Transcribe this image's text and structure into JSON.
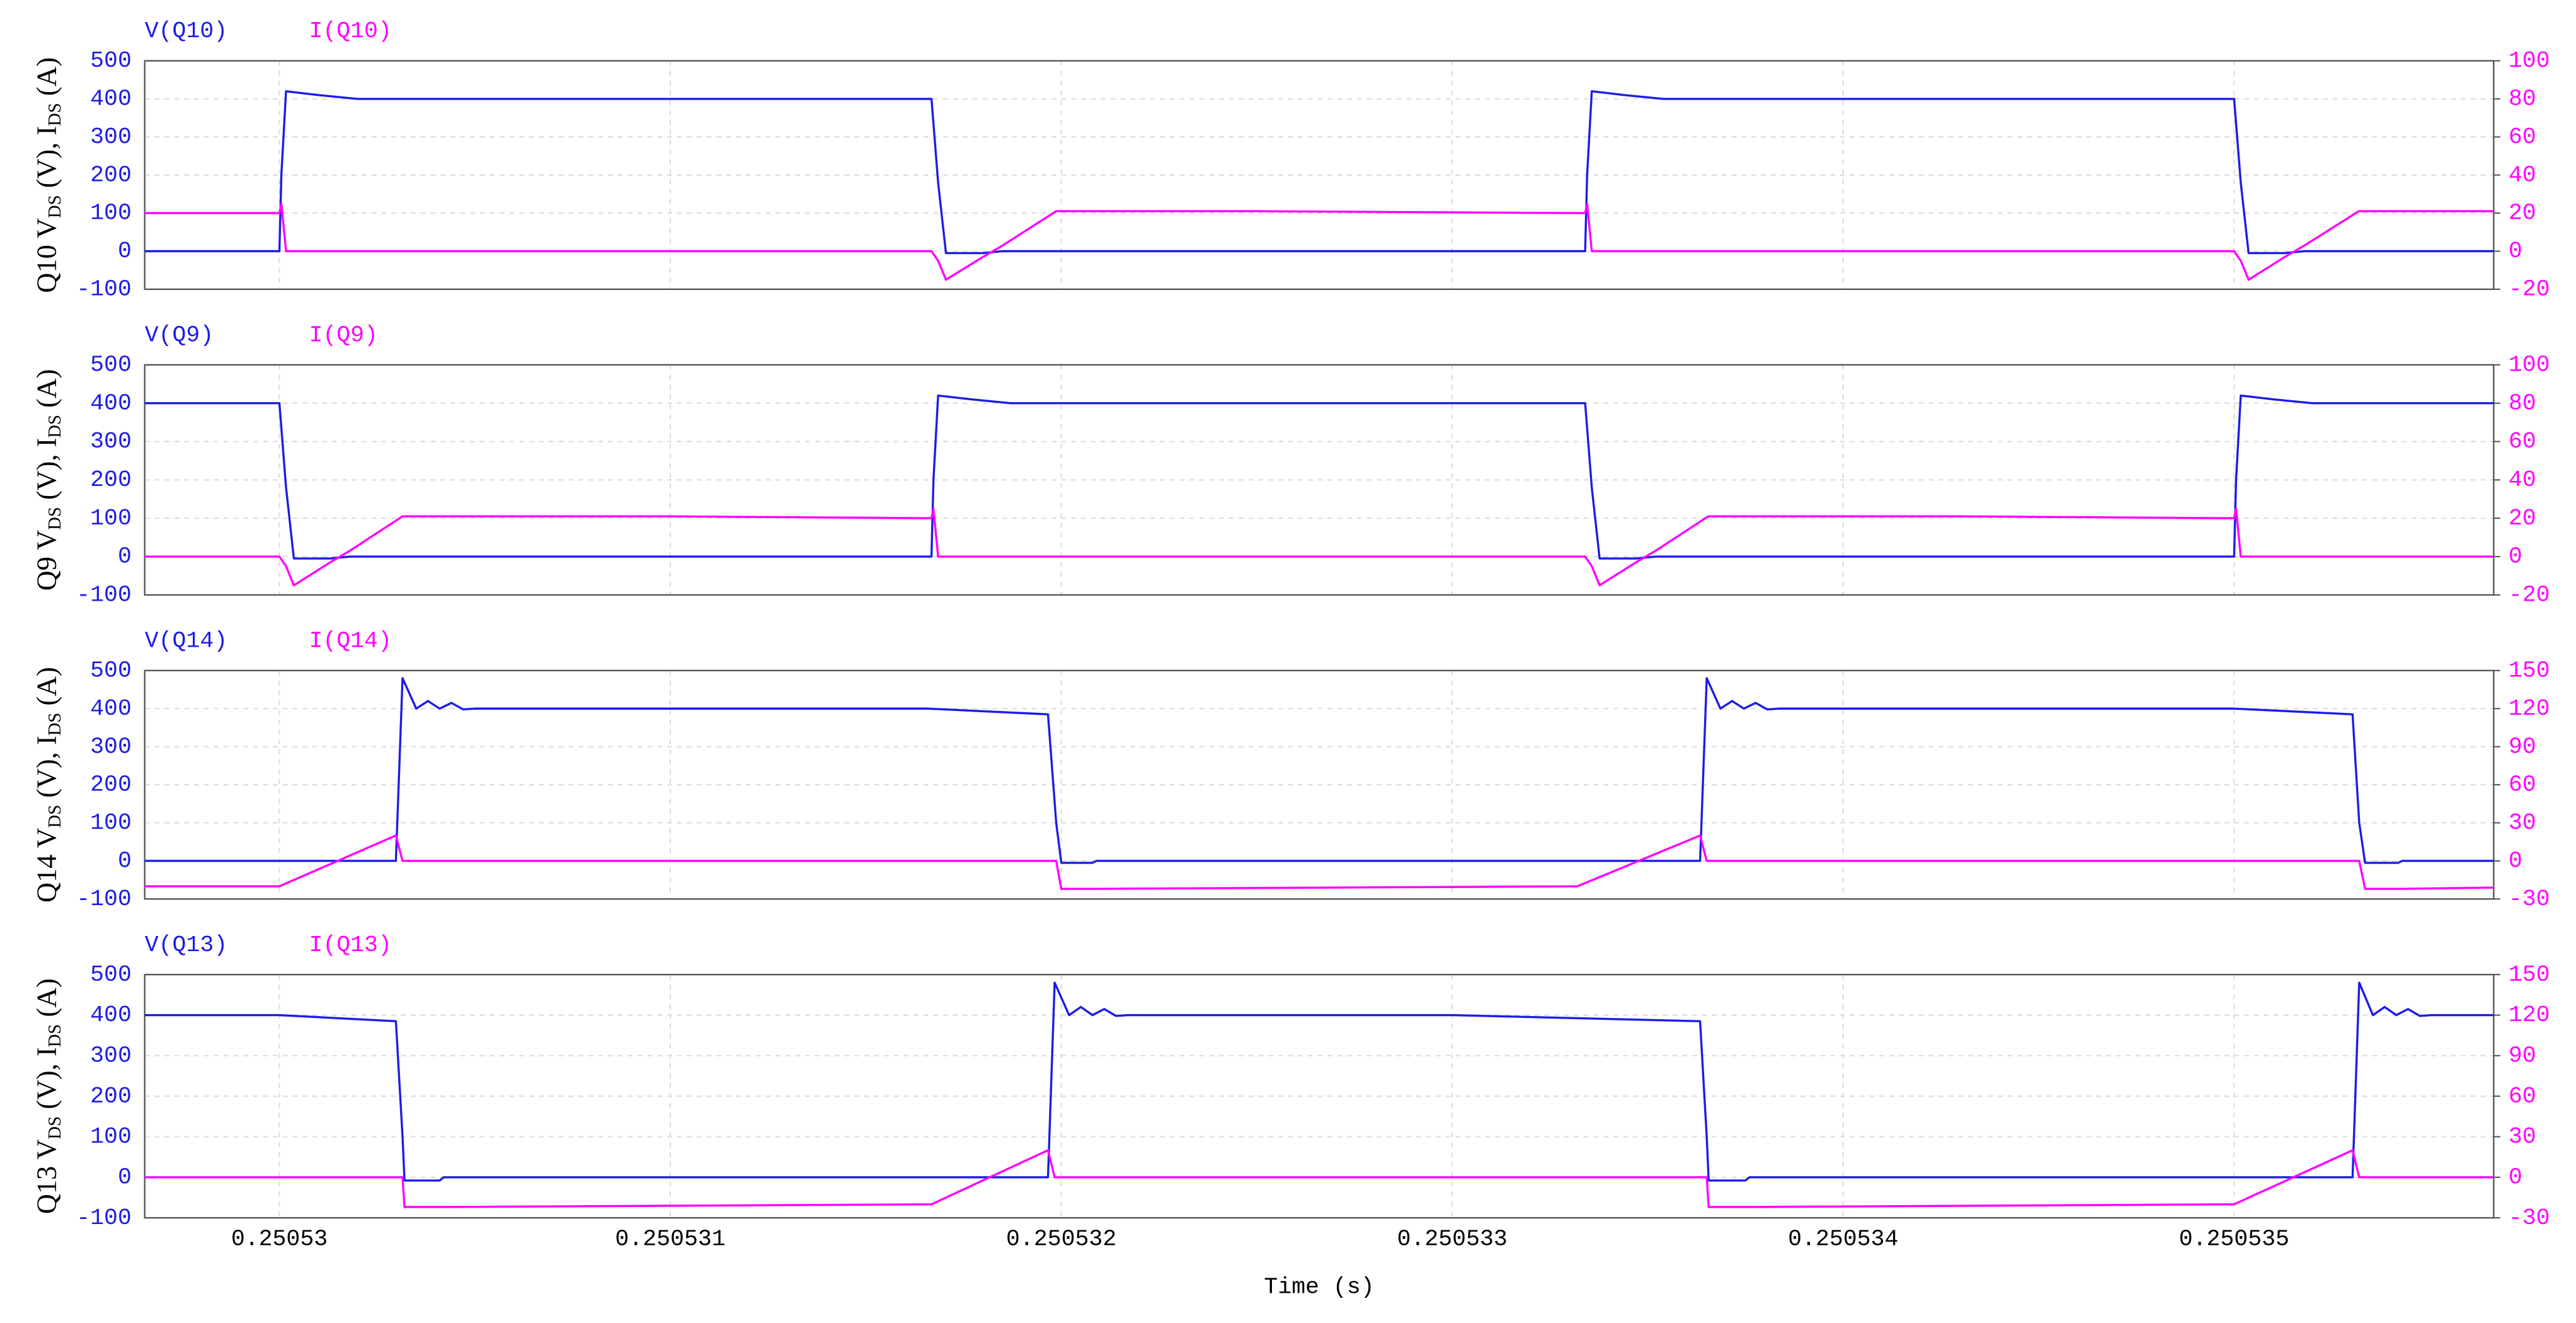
{
  "chart_data": [
    {
      "type": "line",
      "x": [
        0.2505296555,
        0.25053,
        0.250530005,
        0.250530017,
        0.2505301,
        0.2505302,
        0.250531668,
        0.250531685,
        0.250531705,
        0.2505318,
        0.25053185,
        0.250531987,
        0.2505325,
        0.25053334,
        0.250533345,
        0.250533357,
        0.25053344,
        0.25053354,
        0.250535,
        0.250535017,
        0.250535037,
        0.25053513,
        0.25053518,
        0.250535319,
        0.250535664
      ],
      "series": [
        {
          "name": "V(Q10)",
          "color": "#1c1ce6",
          "values": [
            0,
            0,
            200,
            420,
            410,
            400,
            400,
            180,
            -5,
            -5,
            0,
            0,
            0,
            0,
            200,
            420,
            410,
            400,
            400,
            180,
            -5,
            -5,
            0,
            0,
            0
          ]
        },
        {
          "name": "I(Q10)",
          "color": "#ff00ff",
          "axis": "y2",
          "values": [
            20,
            20,
            25,
            0,
            0,
            0,
            0,
            -5,
            -15,
            -3,
            3,
            21,
            21,
            20,
            25,
            0,
            0,
            0,
            0,
            -5,
            -15,
            -3,
            3,
            21,
            21
          ]
        }
      ],
      "ylabel": [
        "Q10 V",
        "DS",
        " (V), I",
        "DS",
        " (A)"
      ],
      "xlim": [
        0.2505296555,
        0.250535664
      ],
      "xticks": [
        0.25053,
        0.250531,
        0.250532,
        0.250533,
        0.250534,
        0.250535
      ],
      "ylim": [
        -100,
        500
      ],
      "yticks": [
        -100,
        0,
        100,
        200,
        300,
        400,
        500
      ],
      "y2lim": [
        -20,
        100
      ],
      "y2ticks": [
        -20,
        0,
        20,
        40,
        60,
        80,
        100
      ],
      "grid": true
    },
    {
      "type": "line",
      "x": [
        0.2505296555,
        0.25053,
        0.250530017,
        0.250530037,
        0.25053013,
        0.25053018,
        0.250530315,
        0.250531,
        0.250531668,
        0.250531673,
        0.250531685,
        0.25053177,
        0.25053187,
        0.25053334,
        0.250533357,
        0.250533377,
        0.25053347,
        0.25053352,
        0.250533655,
        0.2505343,
        0.250535,
        0.250535005,
        0.250535017,
        0.2505351,
        0.2505352,
        0.250535664
      ],
      "series": [
        {
          "name": "V(Q9)",
          "color": "#1c1ce6",
          "values": [
            400,
            400,
            180,
            -5,
            -5,
            0,
            0,
            0,
            0,
            200,
            420,
            410,
            400,
            400,
            180,
            -5,
            -5,
            0,
            0,
            0,
            0,
            200,
            420,
            410,
            400,
            400
          ]
        },
        {
          "name": "I(Q9)",
          "color": "#ff00ff",
          "axis": "y2",
          "values": [
            0,
            0,
            -5,
            -15,
            -3,
            3,
            21,
            21,
            20,
            25,
            0,
            0,
            0,
            0,
            -5,
            -15,
            -3,
            3,
            21,
            21,
            20,
            25,
            0,
            0,
            0,
            0
          ]
        }
      ],
      "ylabel": [
        "Q9 V",
        "DS",
        " (V), I",
        "DS",
        " (A)"
      ],
      "xlim": [
        0.2505296555,
        0.250535664
      ],
      "xticks": [
        0.25053,
        0.250531,
        0.250532,
        0.250533,
        0.250534,
        0.250535
      ],
      "ylim": [
        -100,
        500
      ],
      "yticks": [
        -100,
        0,
        100,
        200,
        300,
        400,
        500
      ],
      "y2lim": [
        -20,
        100
      ],
      "y2ticks": [
        -20,
        0,
        20,
        40,
        60,
        80,
        100
      ],
      "grid": true
    },
    {
      "type": "line",
      "x": [
        0.2505296555,
        0.25053,
        0.250530298,
        0.250530315,
        0.25053035,
        0.25053038,
        0.25053041,
        0.25053044,
        0.25053047,
        0.2505305,
        0.25053166,
        0.250531966,
        0.250531987,
        0.250532,
        0.25053208,
        0.25053209,
        0.25053332,
        0.250533634,
        0.250533651,
        0.250533686,
        0.250533716,
        0.250533746,
        0.250533776,
        0.250533806,
        0.250533836,
        0.250535,
        0.250535303,
        0.25053532,
        0.250535335,
        0.25053542,
        0.25053543,
        0.250535664
      ],
      "series": [
        {
          "name": "V(Q14)",
          "color": "#1c1ce6",
          "values": [
            0,
            0,
            0,
            480,
            400,
            420,
            400,
            415,
            398,
            400,
            400,
            385,
            100,
            -5,
            -5,
            0,
            0,
            0,
            480,
            400,
            420,
            400,
            415,
            398,
            400,
            400,
            385,
            100,
            -5,
            -5,
            0,
            0
          ]
        },
        {
          "name": "I(Q14)",
          "color": "#ff00ff",
          "axis": "y2",
          "values": [
            -20,
            -20,
            20,
            0,
            0,
            0,
            0,
            0,
            0,
            0,
            0,
            0,
            0,
            -22,
            -22,
            -22,
            -20,
            20,
            0,
            0,
            0,
            0,
            0,
            0,
            0,
            0,
            0,
            0,
            -22,
            -22,
            -22,
            -21
          ]
        }
      ],
      "ylabel": [
        "Q14 V",
        "DS",
        " (V), I",
        "DS",
        " (A)"
      ],
      "xlim": [
        0.2505296555,
        0.250535664
      ],
      "xticks": [
        0.25053,
        0.250531,
        0.250532,
        0.250533,
        0.250534,
        0.250535
      ],
      "ylim": [
        -100,
        500
      ],
      "yticks": [
        -100,
        0,
        100,
        200,
        300,
        400,
        500
      ],
      "y2lim": [
        -30,
        150
      ],
      "y2ticks": [
        -30,
        0,
        30,
        60,
        90,
        120,
        150
      ],
      "grid": true
    },
    {
      "type": "line",
      "x": [
        0.2505296555,
        0.25053,
        0.250530298,
        0.250530315,
        0.25053032,
        0.25053041,
        0.25053042,
        0.250531668,
        0.250531966,
        0.250531983,
        0.25053202,
        0.25053205,
        0.25053208,
        0.25053211,
        0.25053214,
        0.25053217,
        0.250533,
        0.250533634,
        0.250533651,
        0.250533656,
        0.25053375,
        0.25053376,
        0.250535,
        0.250535303,
        0.25053532,
        0.250535355,
        0.250535385,
        0.250535415,
        0.250535445,
        0.250535475,
        0.250535505,
        0.250535664
      ],
      "series": [
        {
          "name": "V(Q13)",
          "color": "#1c1ce6",
          "values": [
            400,
            400,
            385,
            100,
            -8,
            -8,
            0,
            0,
            0,
            480,
            400,
            420,
            400,
            415,
            398,
            400,
            400,
            385,
            100,
            -8,
            -8,
            0,
            0,
            0,
            480,
            400,
            420,
            400,
            415,
            398,
            400,
            400
          ]
        },
        {
          "name": "I(Q13)",
          "color": "#ff00ff",
          "axis": "y2",
          "values": [
            0,
            0,
            0,
            0,
            -22,
            -22,
            -22,
            -20,
            20,
            0,
            0,
            0,
            0,
            0,
            0,
            0,
            0,
            0,
            0,
            -22,
            -22,
            -22,
            -20,
            20,
            0,
            0,
            0,
            0,
            0,
            0,
            0,
            0
          ]
        }
      ],
      "ylabel": [
        "Q13 V",
        "DS",
        " (V), I",
        "DS",
        " (A)"
      ],
      "xlabel": "Time (s)",
      "xlim": [
        0.2505296555,
        0.250535664
      ],
      "xticks": [
        0.25053,
        0.250531,
        0.250532,
        0.250533,
        0.250534,
        0.250535
      ],
      "ylim": [
        -100,
        500
      ],
      "yticks": [
        -100,
        0,
        100,
        200,
        300,
        400,
        500
      ],
      "y2lim": [
        -30,
        150
      ],
      "y2ticks": [
        -30,
        0,
        30,
        60,
        90,
        120,
        150
      ],
      "grid": true
    }
  ]
}
